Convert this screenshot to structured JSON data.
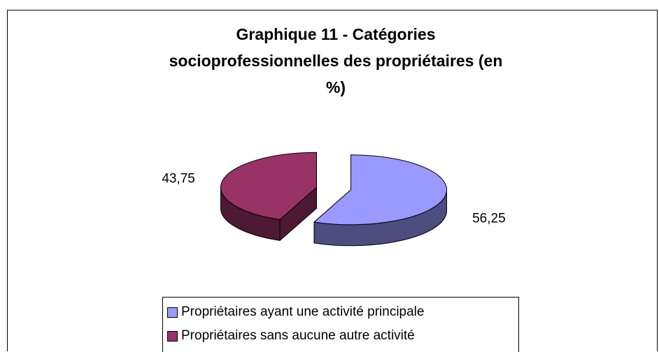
{
  "chart_data": {
    "type": "pie3d",
    "title": "Graphique 11 - Catégories socioprofessionnelles des propriétaires (en %)",
    "categories": [
      "Propriétaires ayant une activité principale",
      "Propriétaires sans aucune autre activité"
    ],
    "values": [
      56.25,
      43.75
    ],
    "value_labels": [
      "56,25",
      "43,75"
    ],
    "colors": [
      "#9999ff",
      "#993366"
    ],
    "legend": "bottom"
  }
}
